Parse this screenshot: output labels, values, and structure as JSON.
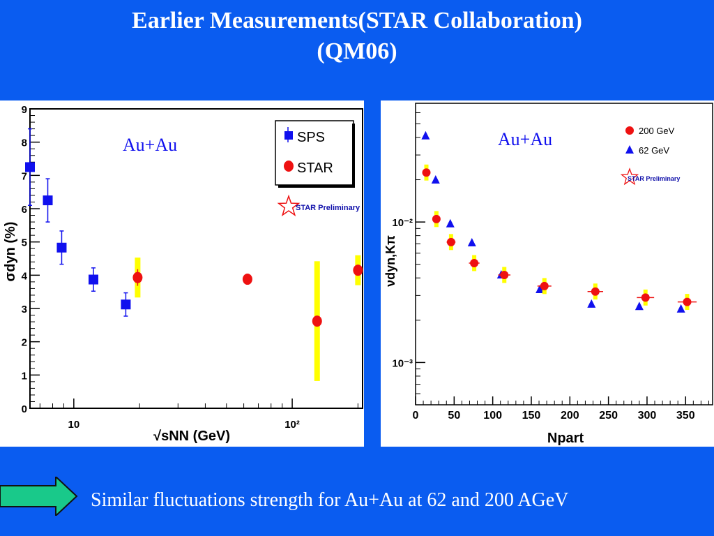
{
  "slide": {
    "title_line1": "Earlier Measurements(STAR Collaboration)",
    "title_line2": "(QM06)",
    "caption": "Similar fluctuations strength for Au+Au at 62 and 200 AGeV",
    "arrow_icon": "right-arrow-icon",
    "colors": {
      "background": "#0a5cf0",
      "arrow": "#19c98a",
      "blue_marker": "#1010ee",
      "red_marker": "#ee1111",
      "syst_band": "#ffff00"
    }
  },
  "chart_data": [
    {
      "type": "scatter",
      "annotation": "Au+Au",
      "badge": "STAR Preliminary",
      "xlabel": "√sNN (GeV)",
      "ylabel": "σdyn (%)",
      "xscale": "log",
      "xlim": [
        6.3,
        210
      ],
      "ylim": [
        0,
        9
      ],
      "y_ticks": [
        "0",
        "1",
        "2",
        "3",
        "4",
        "5",
        "6",
        "7",
        "8",
        "9"
      ],
      "x_ticks": [
        "10",
        "10²"
      ],
      "legend_position": "top-right",
      "series": [
        {
          "name": "SPS",
          "marker": "square",
          "color": "#1010ee",
          "points": [
            {
              "x": 6.3,
              "y": 7.25,
              "err": 1.15
            },
            {
              "x": 7.6,
              "y": 6.25,
              "err": 0.65
            },
            {
              "x": 8.8,
              "y": 4.83,
              "err": 0.5
            },
            {
              "x": 12.3,
              "y": 3.87,
              "err": 0.35
            },
            {
              "x": 17.3,
              "y": 3.12,
              "err": 0.35
            }
          ]
        },
        {
          "name": "STAR",
          "marker": "circle",
          "color": "#ee1111",
          "points": [
            {
              "x": 19.6,
              "y": 3.93,
              "err": 0.25,
              "syst": 0.6
            },
            {
              "x": 62.4,
              "y": 3.88,
              "err": 0.1,
              "syst": 0
            },
            {
              "x": 130,
              "y": 2.62,
              "err": 0.1,
              "syst": 1.8
            },
            {
              "x": 200,
              "y": 4.15,
              "err": 0.1,
              "syst": 0.45
            }
          ]
        }
      ]
    },
    {
      "type": "scatter",
      "annotation": "Au+Au",
      "badge": "STAR Preliminary",
      "xlabel": "Npart",
      "ylabel": "νdyn,Kπ",
      "yscale": "log",
      "xlim": [
        0,
        385
      ],
      "ylim": [
        0.0005,
        0.07
      ],
      "x_ticks": [
        "0",
        "50",
        "100",
        "150",
        "200",
        "250",
        "300",
        "350"
      ],
      "y_tick_labels": [
        "10⁻²",
        "10⁻³"
      ],
      "legend_position": "top-right",
      "series": [
        {
          "name": "200 GeV",
          "marker": "circle",
          "color": "#ee1111",
          "points": [
            {
              "x": 14,
              "y": 0.0225
            },
            {
              "x": 27,
              "y": 0.0105
            },
            {
              "x": 46,
              "y": 0.0072
            },
            {
              "x": 76,
              "y": 0.0051
            },
            {
              "x": 115,
              "y": 0.0042
            },
            {
              "x": 167,
              "y": 0.0035
            },
            {
              "x": 233,
              "y": 0.0032
            },
            {
              "x": 298,
              "y": 0.0029
            },
            {
              "x": 352,
              "y": 0.0027
            }
          ]
        },
        {
          "name": "62 GeV",
          "marker": "triangle",
          "color": "#1010ee",
          "points": [
            {
              "x": 13,
              "y": 0.041
            },
            {
              "x": 26,
              "y": 0.0199
            },
            {
              "x": 45,
              "y": 0.0097
            },
            {
              "x": 73,
              "y": 0.0071
            },
            {
              "x": 111,
              "y": 0.0042
            },
            {
              "x": 161,
              "y": 0.0033
            },
            {
              "x": 228,
              "y": 0.0026
            },
            {
              "x": 290,
              "y": 0.0025
            },
            {
              "x": 344,
              "y": 0.0024
            }
          ]
        }
      ]
    }
  ]
}
